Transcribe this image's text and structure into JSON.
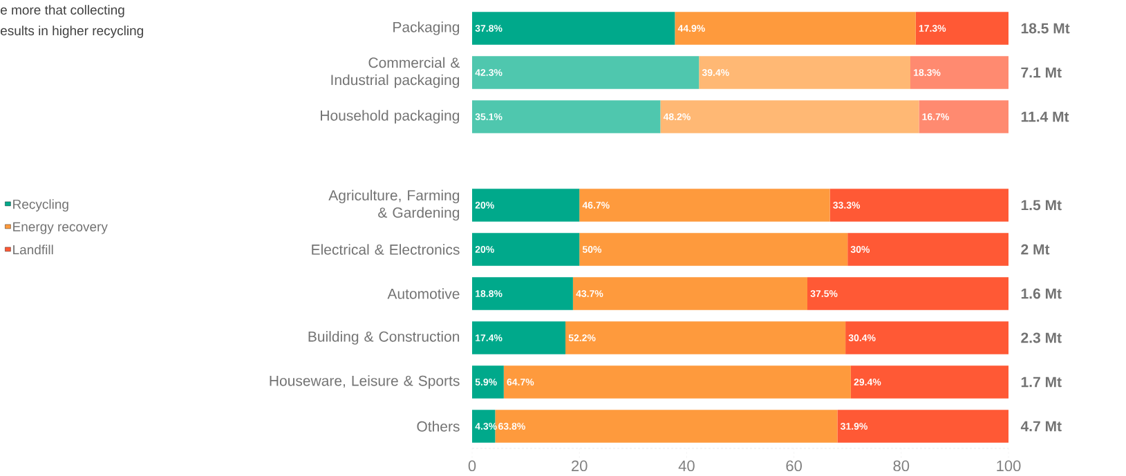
{
  "chart_data": {
    "type": "bar",
    "orientation": "horizontal",
    "stacked": true,
    "categories": [
      "Packaging",
      "Commercial & Industrial packaging",
      "Household packaging",
      null,
      "Agriculture, Farming & Gardening",
      "Electrical & Electronics",
      "Automotive",
      "Building & Construction",
      "Houseware, Leisure & Sports",
      "Others"
    ],
    "series": [
      {
        "name": "Recycling",
        "color": "#00a98b",
        "colors": [
          "#00a98b",
          "#4fc7ae",
          "#4fc7ae",
          null,
          "#00a98b",
          "#00a98b",
          "#00a98b",
          "#00a98b",
          "#00a98b",
          "#00a98b"
        ],
        "values": [
          37.8,
          42.3,
          35.1,
          null,
          20,
          20,
          18.8,
          17.4,
          5.9,
          4.3
        ],
        "value_labels": [
          "37.8%",
          "42.3%",
          "35.1%",
          null,
          "20%",
          "20%",
          "18.8%",
          "17.4%",
          "5.9%",
          "4.3%"
        ]
      },
      {
        "name": "Energy recovery",
        "color": "#fe9a3d",
        "colors": [
          "#fe9a3d",
          "#ffb874",
          "#ffb874",
          null,
          "#fe9a3d",
          "#fe9a3d",
          "#fe9a3d",
          "#fe9a3d",
          "#fe9a3d",
          "#fe9a3d"
        ],
        "values": [
          44.9,
          39.4,
          48.2,
          null,
          46.7,
          50,
          43.7,
          52.2,
          64.7,
          63.8
        ],
        "value_labels": [
          "44.9%",
          "39.4%",
          "48.2%",
          null,
          "46.7%",
          "50%",
          "43.7%",
          "52.2%",
          "64.7%",
          "63.8%"
        ]
      },
      {
        "name": "Landfill",
        "color": "#ff5935",
        "colors": [
          "#ff5935",
          "#ff8a70",
          "#ff8a70",
          null,
          "#ff5935",
          "#ff5935",
          "#ff5935",
          "#ff5935",
          "#ff5935",
          "#ff5935"
        ],
        "values": [
          17.3,
          18.3,
          16.7,
          null,
          33.3,
          30,
          37.5,
          30.4,
          29.4,
          31.9
        ],
        "value_labels": [
          "17.3%",
          "18.3%",
          "16.7%",
          null,
          "33.3%",
          "30%",
          "37.5%",
          "30.4%",
          "29.4%",
          "31.9%"
        ]
      }
    ],
    "xlim": [
      0,
      100
    ],
    "xticks": [
      0,
      20,
      40,
      60,
      80,
      100
    ],
    "legend": "left",
    "annotations": [
      "e more that collecting",
      "esults in higher recycling",
      "18.5 Mt",
      "7.1 Mt",
      "11.4 Mt",
      "1.5 Mt",
      "2 Mt",
      "1.6 Mt",
      "2.3 Mt",
      "1.7 Mt",
      "4.7 Mt"
    ]
  }
}
